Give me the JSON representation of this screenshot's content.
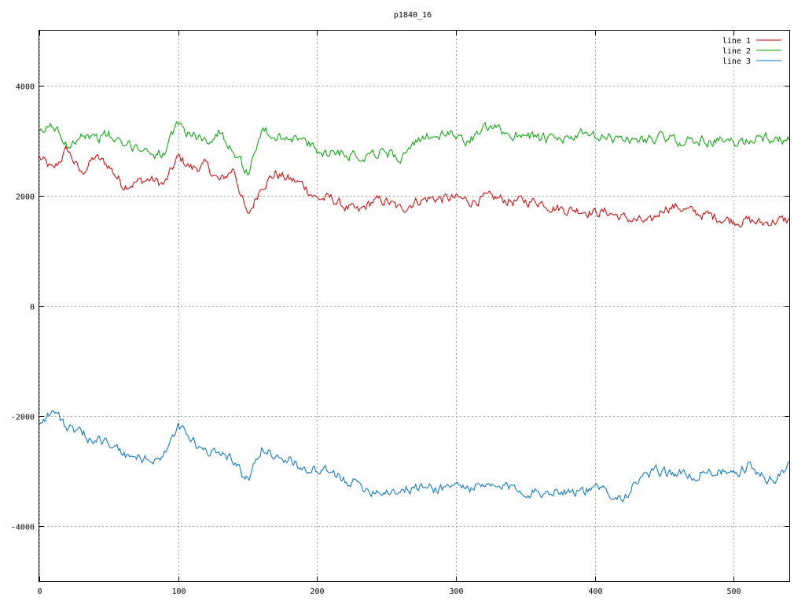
{
  "chart_data": {
    "type": "line",
    "title": "p1840_16",
    "xlabel": "",
    "ylabel": "",
    "xlim": [
      0,
      540
    ],
    "ylim": [
      -5000,
      5000
    ],
    "x_ticks": [
      0,
      100,
      200,
      300,
      400,
      500
    ],
    "y_ticks": [
      -4000,
      -2000,
      0,
      2000,
      4000
    ],
    "grid": true,
    "legend_position": "top-right",
    "x_step": 10,
    "series": [
      {
        "name": "line 1",
        "color": "#cc0000",
        "values": [
          2700,
          2450,
          2850,
          2400,
          2700,
          2550,
          2200,
          2250,
          2300,
          2200,
          2700,
          2500,
          2550,
          2250,
          2500,
          1600,
          2200,
          2400,
          2300,
          2200,
          1950,
          1950,
          1800,
          1700,
          1900,
          1900,
          1750,
          1900,
          1950,
          1950,
          1950,
          1900,
          1950,
          1950,
          1900,
          1900,
          1900,
          1800,
          1750,
          1750,
          1700,
          1700,
          1600,
          1550,
          1500,
          1800,
          1800,
          1700,
          1650,
          1600,
          1550,
          1550,
          1500,
          1550,
          1550
        ]
      },
      {
        "name": "line 2",
        "color": "#00a000",
        "values": [
          3100,
          3300,
          2900,
          3150,
          3050,
          3100,
          2900,
          2900,
          2800,
          2750,
          3300,
          3100,
          3000,
          3150,
          2850,
          2400,
          3200,
          3050,
          3100,
          3000,
          2800,
          2800,
          2800,
          2700,
          2800,
          2800,
          2700,
          2900,
          3100,
          3100,
          3100,
          3000,
          3200,
          3200,
          3100,
          3150,
          3050,
          3000,
          3050,
          3100,
          3050,
          3050,
          3050,
          3000,
          3050,
          3050,
          3000,
          3000,
          3000,
          3000,
          2950,
          3000,
          3100,
          3000,
          3000
        ]
      },
      {
        "name": "line 3",
        "color": "#0070c0",
        "values": [
          -2100,
          -1900,
          -2200,
          -2350,
          -2400,
          -2500,
          -2700,
          -2750,
          -2800,
          -2700,
          -2200,
          -2450,
          -2700,
          -2600,
          -2800,
          -3200,
          -2600,
          -2700,
          -2800,
          -2950,
          -3000,
          -3050,
          -3150,
          -3250,
          -3350,
          -3350,
          -3350,
          -3300,
          -3300,
          -3300,
          -3250,
          -3300,
          -3300,
          -3300,
          -3300,
          -3350,
          -3400,
          -3350,
          -3350,
          -3350,
          -3350,
          -3350,
          -3500,
          -3200,
          -3050,
          -3000,
          -3050,
          -3100,
          -3000,
          -3000,
          -3100,
          -2900,
          -3100,
          -3150,
          -2900
        ]
      }
    ]
  }
}
